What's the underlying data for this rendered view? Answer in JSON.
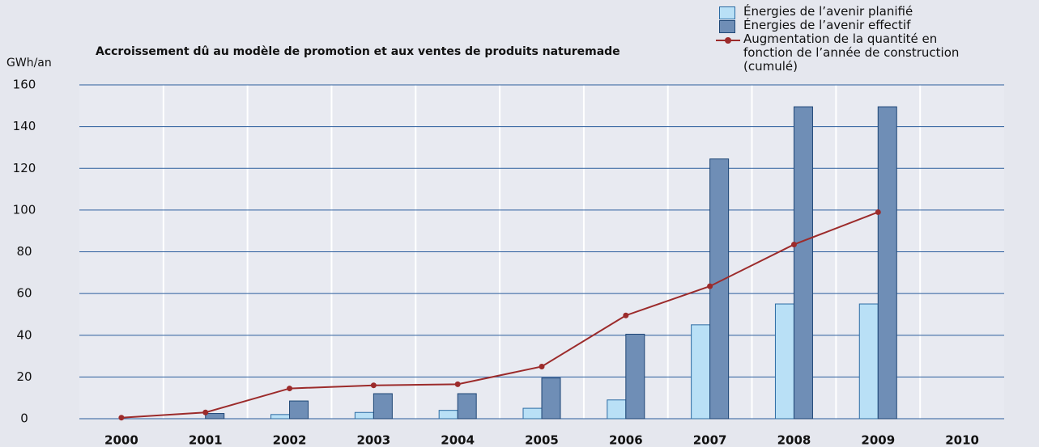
{
  "chart_data": {
    "type": "bar",
    "title": "Accroissement dû au modèle de promotion et aux ventes de produits naturemade",
    "y_label": "GWh/an",
    "categories": [
      "2000",
      "2001",
      "2002",
      "2003",
      "2004",
      "2005",
      "2006",
      "2007",
      "2008",
      "2009",
      "2010"
    ],
    "series": [
      {
        "name": "Énergies de l’avenir planifié",
        "type": "bar",
        "color": "#b9e0f6",
        "values": [
          null,
          null,
          2,
          3,
          4,
          5,
          9,
          45,
          55,
          55,
          null
        ]
      },
      {
        "name": "Énergies de l’avenir effectif",
        "type": "bar",
        "color": "#6f8eb6",
        "values": [
          null,
          2.5,
          8.5,
          12,
          12,
          19.5,
          40.5,
          124.5,
          149.5,
          149.5,
          null
        ]
      },
      {
        "name": "Augmentation de la quantité en fonction de l’année de construction (cumulé)",
        "type": "line",
        "color": "#9c2b2b",
        "values": [
          0.5,
          3,
          14.5,
          16,
          16.5,
          25,
          49.5,
          63.5,
          83.5,
          99,
          null
        ]
      }
    ],
    "ylim": [
      0,
      160
    ],
    "yticks": [
      0,
      20,
      40,
      60,
      80,
      100,
      120,
      140,
      160
    ],
    "grid": true
  }
}
